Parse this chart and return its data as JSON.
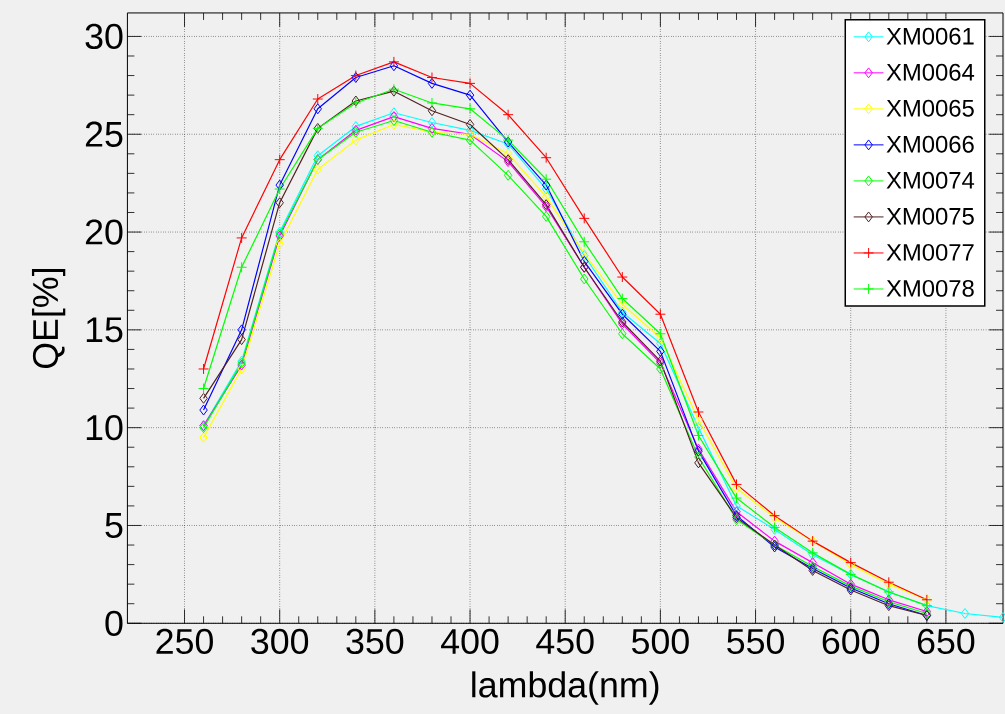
{
  "chart_data": {
    "type": "line",
    "xlabel": "lambda(nm)",
    "ylabel": "QE[%]",
    "x": [
      260,
      280,
      300,
      320,
      340,
      360,
      380,
      400,
      420,
      440,
      460,
      480,
      500,
      520,
      540,
      560,
      580,
      600,
      620,
      640
    ],
    "series": [
      {
        "name": "XM0061",
        "color": "#00ffff",
        "marker": "diamond",
        "x": [
          260,
          280,
          300,
          320,
          340,
          360,
          380,
          400,
          420,
          440,
          460,
          480,
          500,
          520,
          540,
          560,
          580,
          600,
          620,
          640,
          660,
          680
        ],
        "values": [
          10.1,
          13.4,
          20.0,
          23.9,
          25.4,
          26.1,
          25.6,
          25.2,
          24.5,
          22.2,
          18.8,
          15.9,
          14.3,
          10.0,
          6.0,
          4.8,
          3.5,
          2.5,
          1.6,
          0.9,
          0.5,
          0.3
        ]
      },
      {
        "name": "XM0064",
        "color": "#ff00ff",
        "marker": "diamond",
        "values": [
          10.1,
          13.2,
          19.8,
          23.7,
          25.2,
          25.9,
          25.3,
          25.0,
          23.6,
          21.3,
          18.2,
          15.3,
          13.3,
          8.9,
          5.7,
          4.2,
          3.1,
          2.0,
          1.2,
          0.6
        ]
      },
      {
        "name": "XM0065",
        "color": "#ffff00",
        "marker": "diamond",
        "values": [
          9.5,
          13.0,
          19.4,
          23.2,
          24.7,
          25.5,
          25.1,
          25.0,
          24.0,
          21.8,
          18.9,
          16.3,
          14.6,
          10.4,
          6.9,
          5.4,
          4.2,
          3.0,
          2.0,
          1.2
        ]
      },
      {
        "name": "XM0066",
        "color": "#0000ff",
        "marker": "diamond",
        "values": [
          10.9,
          15.0,
          22.4,
          26.3,
          27.9,
          28.5,
          27.6,
          27.0,
          24.6,
          22.4,
          18.5,
          15.8,
          13.9,
          8.8,
          5.5,
          3.9,
          2.8,
          1.8,
          1.0,
          0.4
        ]
      },
      {
        "name": "XM0074",
        "color": "#00ff00",
        "marker": "diamond",
        "values": [
          10.0,
          13.3,
          19.9,
          23.7,
          25.1,
          25.7,
          25.1,
          24.7,
          22.9,
          20.8,
          17.6,
          14.8,
          13.0,
          8.5,
          5.3,
          4.0,
          2.9,
          1.9,
          1.1,
          0.5
        ]
      },
      {
        "name": "XM0075",
        "color": "#502020",
        "marker": "diamond",
        "values": [
          11.5,
          14.5,
          21.5,
          25.3,
          26.7,
          27.2,
          26.2,
          25.5,
          23.7,
          21.4,
          18.2,
          15.4,
          13.4,
          8.2,
          5.4,
          4.0,
          2.7,
          1.7,
          0.9,
          0.4
        ]
      },
      {
        "name": "XM0077",
        "color": "#ff0000",
        "marker": "cross",
        "values": [
          13.0,
          19.7,
          23.7,
          26.8,
          28.0,
          28.7,
          27.9,
          27.6,
          26.0,
          23.8,
          20.7,
          17.7,
          15.8,
          10.8,
          7.1,
          5.5,
          4.2,
          3.1,
          2.1,
          1.2
        ]
      },
      {
        "name": "XM0078",
        "color": "#00ff00",
        "marker": "cross",
        "values": [
          12.0,
          18.2,
          22.2,
          25.3,
          26.6,
          27.3,
          26.6,
          26.3,
          24.7,
          22.7,
          19.5,
          16.6,
          14.8,
          9.6,
          6.4,
          4.9,
          3.6,
          2.5,
          1.6,
          0.9
        ]
      }
    ],
    "xlim": [
      220,
      680
    ],
    "ylim": [
      0,
      31.2
    ],
    "xticks": [
      250,
      300,
      350,
      400,
      450,
      500,
      550,
      600,
      650
    ],
    "yticks": [
      0,
      5,
      10,
      15,
      20,
      25,
      30
    ],
    "grid": true,
    "legend": "top right"
  }
}
